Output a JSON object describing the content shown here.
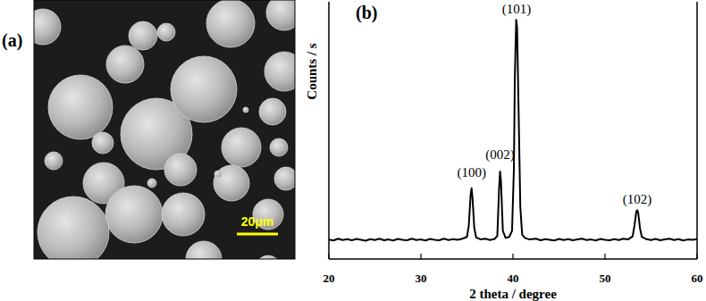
{
  "image_panel": {
    "label": "(a)",
    "scale_bar": "20μm"
  },
  "chart_data": {
    "type": "line",
    "title": "(b)",
    "x_label": "2 theta / degree",
    "y_label": "Counts / s",
    "x": [
      20,
      20.5,
      21,
      21.5,
      22,
      22.5,
      23,
      23.5,
      24,
      24.5,
      25,
      25.5,
      26,
      26.5,
      27,
      27.5,
      28,
      28.5,
      29,
      29.5,
      30,
      30.5,
      31,
      31.5,
      32,
      32.5,
      33,
      33.5,
      34,
      34.5,
      35,
      35.2,
      35.4,
      35.5,
      35.6,
      35.8,
      36.0,
      36.5,
      37,
      37.5,
      38,
      38.3,
      38.5,
      38.6,
      38.7,
      38.9,
      39.2,
      39.6,
      39.9,
      40.1,
      40.2,
      40.35,
      40.45,
      40.6,
      40.8,
      41.0,
      41.3,
      41.8,
      42.5,
      43,
      43.5,
      44,
      44.5,
      45,
      45.5,
      46,
      46.5,
      47,
      47.5,
      48,
      48.5,
      49,
      49.5,
      50,
      50.5,
      51,
      51.5,
      52,
      52.5,
      53.0,
      53.2,
      53.4,
      53.5,
      53.6,
      53.8,
      54.0,
      54.5,
      55,
      55.5,
      56,
      56.5,
      57,
      57.5,
      58,
      58.5,
      59,
      59.5,
      60
    ],
    "values": [
      7.6,
      7.2,
      7.9,
      7.4,
      7.7,
      7.3,
      7.8,
      7.5,
      7.1,
      7.7,
      7.4,
      7.9,
      7.3,
      7.6,
      7.2,
      7.8,
      7.5,
      7.3,
      7.9,
      7.4,
      7.6,
      7.2,
      7.8,
      7.5,
      7.3,
      7.9,
      7.4,
      7.7,
      7.5,
      7.9,
      8.6,
      13,
      25,
      27.5,
      24,
      12,
      8.4,
      7.6,
      7.9,
      7.4,
      7.8,
      9,
      28,
      34,
      30,
      11,
      8.2,
      8.6,
      11,
      35,
      70,
      93,
      90,
      60,
      20,
      9.5,
      8.2,
      7.6,
      7.9,
      7.3,
      7.7,
      7.5,
      7.2,
      7.8,
      7.4,
      7.7,
      7.3,
      7.6,
      7.9,
      7.4,
      7.6,
      7.2,
      7.8,
      7.5,
      7.3,
      7.7,
      7.4,
      7.9,
      7.6,
      8.8,
      13,
      18.5,
      19,
      18,
      12,
      8.6,
      7.7,
      7.4,
      7.8,
      7.3,
      7.6,
      7.9,
      7.4,
      7.7,
      7.2,
      7.6,
      7.5,
      7.7
    ],
    "color": "#000000",
    "xlim": [
      20,
      60
    ],
    "ylim": [
      0,
      100
    ],
    "xticks": [
      20,
      30,
      40,
      50,
      60
    ],
    "tick_labels": "x",
    "grid": false,
    "annotations": [
      {
        "text": "(100)",
        "x": 35.5,
        "y": 32
      },
      {
        "text": "(002)",
        "x": 38.6,
        "y": 39
      },
      {
        "text": "(101)",
        "x": 40.4,
        "y": 95.5
      },
      {
        "text": "(102)",
        "x": 53.5,
        "y": 21.5
      }
    ]
  }
}
